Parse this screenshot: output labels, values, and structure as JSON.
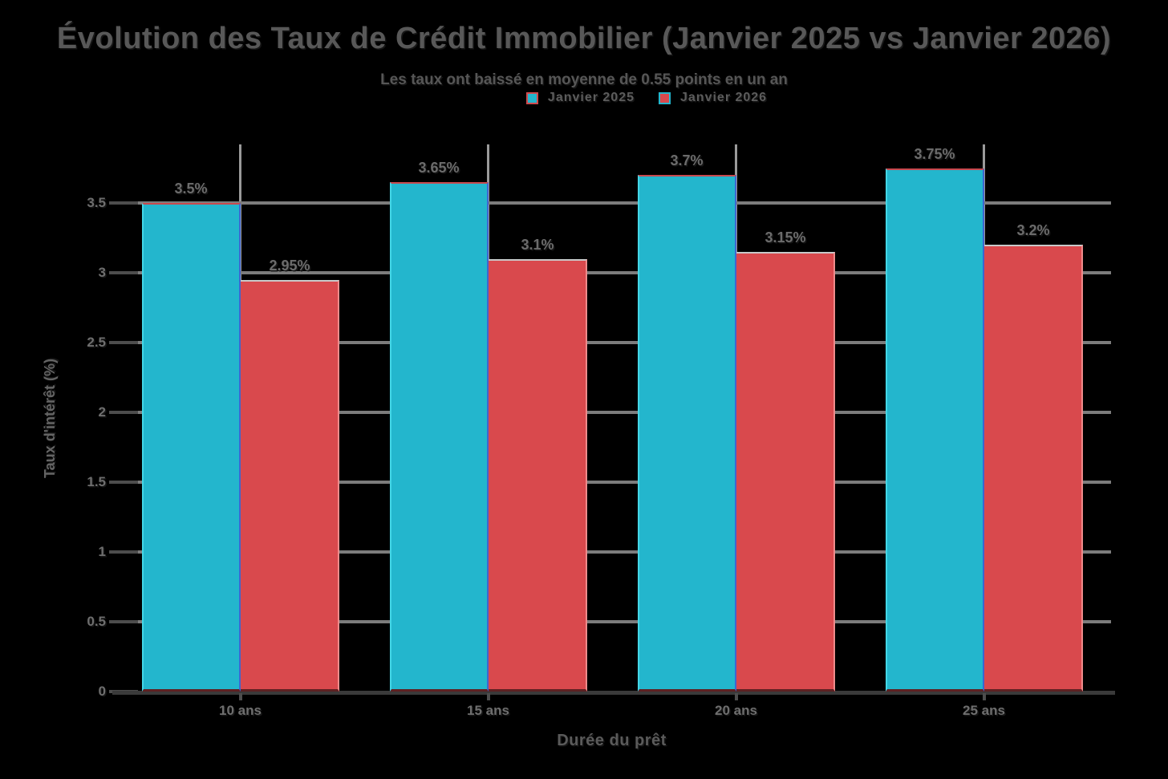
{
  "background": "#000000",
  "title": "Évolution des Taux de Crédit Immobilier (Janvier 2025 vs Janvier 2026)",
  "subtitle": "Les taux ont baissé en moyenne de 0.55 points en un an",
  "legend": [
    {
      "label": "Janvier 2025",
      "color": "#23b6cd",
      "swatch_border": "#cf4a4e"
    },
    {
      "label": "Janvier 2026",
      "color": "#d9494d",
      "swatch_border": "#23b6cd"
    }
  ],
  "chart_data": {
    "type": "bar",
    "title": "Évolution des Taux de Crédit Immobilier (Janvier 2025 vs Janvier 2026)",
    "subtitle": "Les taux ont baissé en moyenne de 0.55 points en un an",
    "categories": [
      "10 ans",
      "15 ans",
      "20 ans",
      "25 ans"
    ],
    "series": [
      {
        "name": "Janvier 2025",
        "color": "#23b6cd",
        "values": [
          3.5,
          3.65,
          3.7,
          3.75
        ],
        "value_labels": [
          "3.5%",
          "3.65%",
          "3.7%",
          "3.75%"
        ]
      },
      {
        "name": "Janvier 2026",
        "color": "#d9494d",
        "values": [
          2.95,
          3.1,
          3.15,
          3.2
        ],
        "value_labels": [
          "2.95%",
          "3.1%",
          "3.15%",
          "3.2%"
        ]
      }
    ],
    "xlabel": "Durée du prêt",
    "ylabel": "Taux d'intérêt (%)",
    "ylim": [
      0,
      3.92
    ],
    "yticks": [
      0,
      0.5,
      1,
      1.5,
      2,
      2.5,
      3,
      3.5
    ],
    "ytick_labels": [
      "0",
      "0.5",
      "1",
      "1.5",
      "2",
      "2.5",
      "3",
      "3.5"
    ],
    "grid": true,
    "legend_position": "top",
    "grid_color": "#7c7c7c",
    "text_color": "#6b6b6b",
    "axis_color": "#3a3a3a"
  }
}
